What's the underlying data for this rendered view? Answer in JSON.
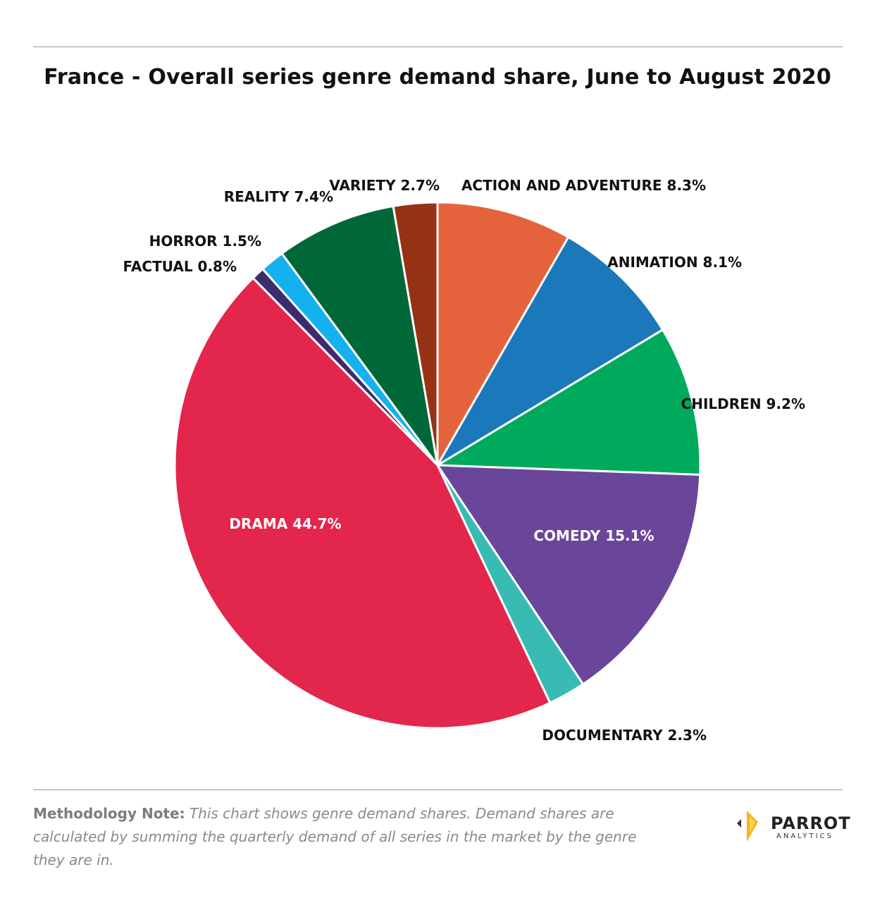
{
  "title": "France - Overall series genre demand share, June to August 2020",
  "chart_data": {
    "type": "pie",
    "title": "France - Overall series genre demand share, June to August 2020",
    "slices": [
      {
        "label": "ACTION AND ADVENTURE 8.3%",
        "name": "ACTION AND ADVENTURE",
        "value": 8.3,
        "color": "#E5633C"
      },
      {
        "label": "ANIMATION 8.1%",
        "name": "ANIMATION",
        "value": 8.1,
        "color": "#1B78BA"
      },
      {
        "label": "CHILDREN 9.2%",
        "name": "CHILDREN",
        "value": 9.2,
        "color": "#00AA5C"
      },
      {
        "label": "COMEDY 15.1%",
        "name": "COMEDY",
        "value": 15.1,
        "color": "#6A469A"
      },
      {
        "label": "DOCUMENTARY 2.3%",
        "name": "DOCUMENTARY",
        "value": 2.3,
        "color": "#38BBB3"
      },
      {
        "label": "DRAMA 44.7%",
        "name": "DRAMA",
        "value": 44.7,
        "color": "#E3264C"
      },
      {
        "label": "FACTUAL 0.8%",
        "name": "FACTUAL",
        "value": 0.8,
        "color": "#3E2B6E"
      },
      {
        "label": "HORROR 1.5%",
        "name": "HORROR",
        "value": 1.5,
        "color": "#13B2EE"
      },
      {
        "label": "REALITY 7.4%",
        "name": "REALITY",
        "value": 7.4,
        "color": "#006838"
      },
      {
        "label": "VARIETY 2.7%",
        "name": "VARIETY",
        "value": 2.7,
        "color": "#963215"
      }
    ]
  },
  "note": {
    "heading": "Methodology Note:",
    "text": "This chart shows genre demand shares. Demand shares are calculated by summing the quarterly demand of all series in the market by the genre they are in."
  },
  "logo": {
    "brand": "PARROT",
    "sub": "ANALYTICS",
    "colors": {
      "accent": "#F5B51B",
      "dark": "#222222"
    }
  }
}
